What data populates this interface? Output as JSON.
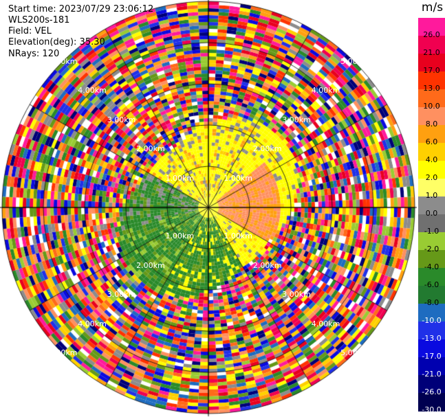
{
  "header": {
    "start_time": "Start time: 2023/07/29 23:06:12",
    "station": "WLS200s-181",
    "field": "Field: VEL",
    "elevation": "Elevation(deg): 35.30",
    "nrays": "NRays: 120"
  },
  "colorbar": {
    "unit": "m/s",
    "labels": [
      "26.0",
      "21.0",
      "17.0",
      "13.0",
      "10.0",
      "8.0",
      "6.0",
      "4.0",
      "2.0",
      "1.0",
      "0.0",
      "-1.0",
      "-2.0",
      "-4.0",
      "-6.0",
      "-8.0",
      "-10.0",
      "-13.0",
      "-17.0",
      "-21.0",
      "-26.0",
      "-30.0"
    ],
    "colors": [
      "#ff1a9c",
      "#f00050",
      "#e8001e",
      "#ff3300",
      "#ff6a1a",
      "#ff9060",
      "#ffa010",
      "#ffd000",
      "#ffff00",
      "#ffff66",
      "#8c8c8c",
      "#707070",
      "#99cc33",
      "#669918",
      "#2a8a2a",
      "#227a30",
      "#1e6cc0",
      "#2030e8",
      "#0a0ae0",
      "#0000b0",
      "#000078",
      "#000050"
    ]
  },
  "range_labels_top": [
    "1.00km",
    "2.00km",
    "3.00km",
    "4.00km",
    "5.00km"
  ],
  "range_labels_bottom": [
    "1.00km",
    "2.00km",
    "3.00km",
    "4.00km",
    "5.00km"
  ],
  "range_labels_top_left": [
    "1.00km",
    "2.00km",
    "3.00km",
    "4.00km",
    "5.00km"
  ],
  "range_labels_bottom_left": [
    "1.00km",
    "2.00km",
    "3.00km",
    "4.00km",
    "5.00km"
  ]
}
